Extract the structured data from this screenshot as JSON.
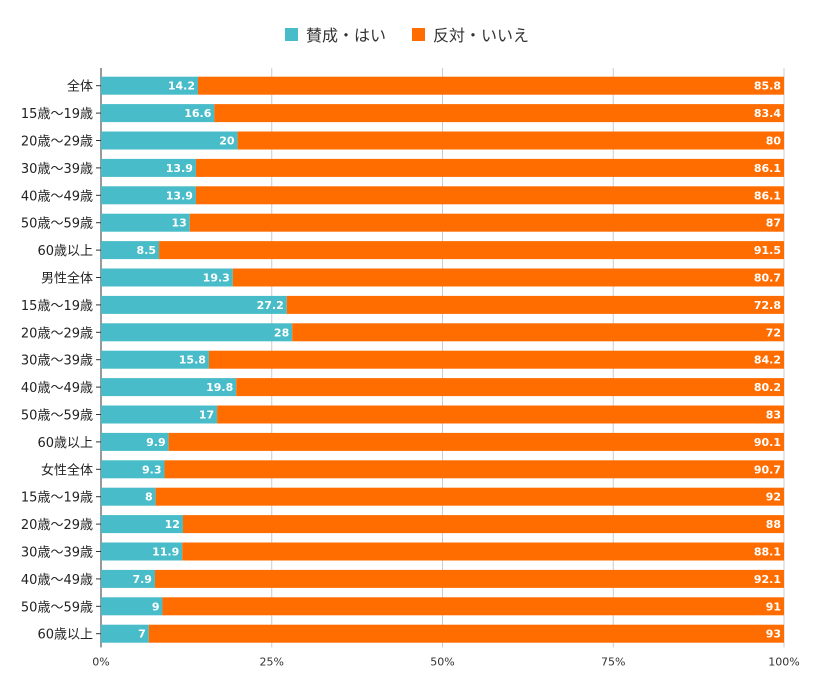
{
  "chart_data": {
    "type": "bar",
    "orientation": "horizontal",
    "stacked": "percent",
    "categories": [
      "全体",
      "15歳～19歳",
      "20歳～29歳",
      "30歳～39歳",
      "40歳～49歳",
      "50歳～59歳",
      "60歳以上",
      "男性全体",
      "15歳～19歳",
      "20歳～29歳",
      "30歳～39歳",
      "40歳～49歳",
      "50歳～59歳",
      "60歳以上",
      "女性全体",
      "15歳～19歳",
      "20歳～29歳",
      "30歳～39歳",
      "40歳～49歳",
      "50歳～59歳",
      "60歳以上"
    ],
    "series": [
      {
        "name": "賛成・はい",
        "color": "#48BCC8",
        "values": [
          14.2,
          16.6,
          20,
          13.9,
          13.9,
          13,
          8.5,
          19.3,
          27.2,
          28,
          15.8,
          19.8,
          17,
          9.9,
          9.3,
          8,
          12,
          11.9,
          7.9,
          9,
          7
        ]
      },
      {
        "name": "反対・いいえ",
        "color": "#FF6D01",
        "values": [
          85.8,
          83.4,
          80,
          86.1,
          86.1,
          87,
          91.5,
          80.7,
          72.8,
          72,
          84.2,
          80.2,
          83,
          90.1,
          90.7,
          92,
          88,
          88.1,
          92.1,
          91,
          93
        ]
      }
    ],
    "x_ticks": [
      "0%",
      "25%",
      "50%",
      "75%",
      "100%"
    ],
    "xlim": [
      0,
      100
    ],
    "legend_position": "top",
    "grid": true
  }
}
